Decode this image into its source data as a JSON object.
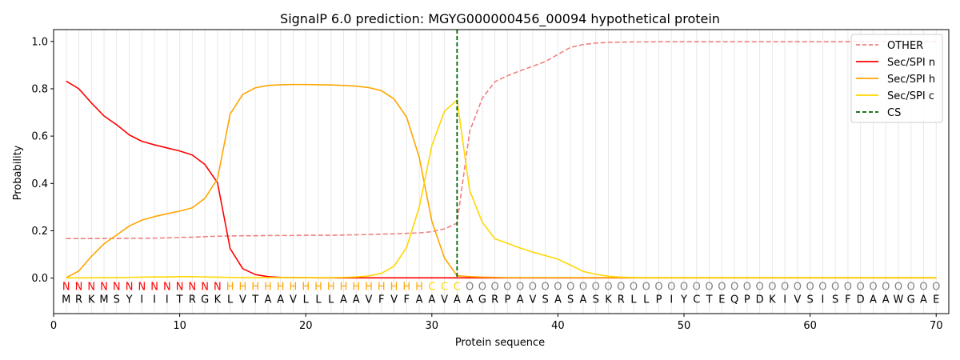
{
  "chart_data": {
    "type": "line",
    "title": "SignalP 6.0 prediction: MGYG000000456_00094 hypothetical protein",
    "xlabel": "Protein sequence",
    "ylabel": "Probability",
    "xlim": [
      0,
      71
    ],
    "ylim": [
      -0.15,
      1.05
    ],
    "xticks": [
      0,
      10,
      20,
      30,
      40,
      50,
      60,
      70
    ],
    "yticks": [
      0.0,
      0.2,
      0.4,
      0.6,
      0.8,
      1.0
    ],
    "grid": "vertical",
    "legend_position": "top-right",
    "x": [
      1,
      2,
      3,
      4,
      5,
      6,
      7,
      8,
      9,
      10,
      11,
      12,
      13,
      14,
      15,
      16,
      17,
      18,
      19,
      20,
      21,
      22,
      23,
      24,
      25,
      26,
      27,
      28,
      29,
      30,
      31,
      32,
      33,
      34,
      35,
      36,
      37,
      38,
      39,
      40,
      41,
      42,
      43,
      44,
      45,
      46,
      47,
      48,
      49,
      50,
      51,
      52,
      53,
      54,
      55,
      56,
      57,
      58,
      59,
      60,
      61,
      62,
      63,
      64,
      65,
      66,
      67,
      68,
      69,
      70
    ],
    "sequence": [
      "M",
      "R",
      "K",
      "M",
      "S",
      "Y",
      "I",
      "I",
      "I",
      "T",
      "R",
      "G",
      "K",
      "L",
      "V",
      "T",
      "A",
      "A",
      "V",
      "L",
      "L",
      "L",
      "A",
      "A",
      "V",
      "F",
      "V",
      "F",
      "A",
      "A",
      "V",
      "A",
      "A",
      "G",
      "R",
      "P",
      "A",
      "V",
      "S",
      "A",
      "S",
      "A",
      "S",
      "K",
      "R",
      "L",
      "L",
      "P",
      "I",
      "Y",
      "C",
      "T",
      "E",
      "Q",
      "P",
      "D",
      "K",
      "I",
      "V",
      "S",
      "I",
      "S",
      "F",
      "D",
      "A",
      "A",
      "W",
      "G",
      "A",
      "E"
    ],
    "labels": [
      "N",
      "N",
      "N",
      "N",
      "N",
      "N",
      "N",
      "N",
      "N",
      "N",
      "N",
      "N",
      "N",
      "H",
      "H",
      "H",
      "H",
      "H",
      "H",
      "H",
      "H",
      "H",
      "H",
      "H",
      "H",
      "H",
      "H",
      "H",
      "H",
      "C",
      "C",
      "C",
      "O",
      "O",
      "O",
      "O",
      "O",
      "O",
      "O",
      "O",
      "O",
      "O",
      "O",
      "O",
      "O",
      "O",
      "O",
      "O",
      "O",
      "O",
      "O",
      "O",
      "O",
      "O",
      "O",
      "O",
      "O",
      "O",
      "O",
      "O",
      "O",
      "O",
      "O",
      "O",
      "O",
      "O",
      "O",
      "O",
      "O",
      "O"
    ],
    "label_colors": {
      "N": "#ff0000",
      "H": "#ffa500",
      "C": "#ffd700",
      "O": "#808080"
    },
    "cs_position": 32,
    "series": [
      {
        "name": "OTHER",
        "color": "#f08080",
        "dash": "dashed",
        "values": [
          0.167,
          0.167,
          0.167,
          0.167,
          0.167,
          0.168,
          0.168,
          0.169,
          0.17,
          0.172,
          0.173,
          0.175,
          0.177,
          0.178,
          0.179,
          0.179,
          0.18,
          0.18,
          0.18,
          0.181,
          0.181,
          0.181,
          0.182,
          0.183,
          0.184,
          0.186,
          0.187,
          0.189,
          0.191,
          0.196,
          0.208,
          0.232,
          0.62,
          0.76,
          0.83,
          0.855,
          0.876,
          0.895,
          0.915,
          0.945,
          0.975,
          0.987,
          0.993,
          0.996,
          0.997,
          0.998,
          0.998,
          0.999,
          0.999,
          0.999,
          0.999,
          0.999,
          0.999,
          0.999,
          0.999,
          0.999,
          0.999,
          0.999,
          0.999,
          0.999,
          0.999,
          0.999,
          0.999,
          0.999,
          0.999,
          0.999,
          0.999,
          0.999,
          0.999,
          0.999
        ]
      },
      {
        "name": "Sec/SPI n",
        "color": "#ff0000",
        "dash": "solid",
        "values": [
          0.832,
          0.8,
          0.74,
          0.685,
          0.648,
          0.605,
          0.578,
          0.563,
          0.55,
          0.537,
          0.52,
          0.48,
          0.403,
          0.125,
          0.04,
          0.015,
          0.006,
          0.003,
          0.002,
          0.002,
          0.001,
          0.001,
          0.001,
          0.001,
          0.001,
          0.001,
          0.001,
          0.001,
          0.001,
          0.001,
          0.001,
          0.001,
          0.001,
          0.001,
          0.001,
          0.001,
          0.001,
          0.001,
          0.001,
          0.001,
          0.001,
          0.001,
          0.001,
          0.001,
          0.001,
          0.001,
          0.001,
          0.001,
          0.001,
          0.001,
          0.001,
          0.001,
          0.001,
          0.001,
          0.001,
          0.001,
          0.001,
          0.001,
          0.001,
          0.001,
          0.001,
          0.001,
          0.001,
          0.001,
          0.001,
          0.001,
          0.001,
          0.001,
          0.001,
          0.001
        ]
      },
      {
        "name": "Sec/SPI h",
        "color": "#ffa500",
        "dash": "solid",
        "values": [
          0.002,
          0.03,
          0.092,
          0.145,
          0.182,
          0.22,
          0.245,
          0.26,
          0.272,
          0.283,
          0.297,
          0.337,
          0.42,
          0.693,
          0.776,
          0.804,
          0.814,
          0.817,
          0.818,
          0.818,
          0.817,
          0.816,
          0.814,
          0.811,
          0.805,
          0.792,
          0.757,
          0.68,
          0.51,
          0.24,
          0.085,
          0.01,
          0.006,
          0.004,
          0.003,
          0.002,
          0.002,
          0.002,
          0.002,
          0.002,
          0.002,
          0.002,
          0.002,
          0.002,
          0.002,
          0.002,
          0.002,
          0.002,
          0.002,
          0.002,
          0.002,
          0.002,
          0.002,
          0.002,
          0.002,
          0.002,
          0.002,
          0.002,
          0.002,
          0.002,
          0.002,
          0.002,
          0.002,
          0.002,
          0.002,
          0.002,
          0.002,
          0.002,
          0.002,
          0.002
        ]
      },
      {
        "name": "Sec/SPI c",
        "color": "#ffd700",
        "dash": "solid",
        "values": [
          0.001,
          0.001,
          0.001,
          0.002,
          0.002,
          0.003,
          0.004,
          0.005,
          0.005,
          0.006,
          0.006,
          0.005,
          0.004,
          0.003,
          0.002,
          0.002,
          0.002,
          0.002,
          0.002,
          0.002,
          0.002,
          0.002,
          0.003,
          0.005,
          0.009,
          0.02,
          0.05,
          0.13,
          0.3,
          0.56,
          0.705,
          0.752,
          0.37,
          0.236,
          0.166,
          0.147,
          0.127,
          0.11,
          0.095,
          0.08,
          0.055,
          0.028,
          0.016,
          0.008,
          0.004,
          0.002,
          0.001,
          0.001,
          0.001,
          0.001,
          0.001,
          0.001,
          0.001,
          0.001,
          0.001,
          0.001,
          0.001,
          0.001,
          0.001,
          0.001,
          0.001,
          0.001,
          0.001,
          0.001,
          0.001,
          0.001,
          0.001,
          0.001,
          0.001,
          0.001
        ]
      }
    ],
    "cs_series": {
      "name": "CS",
      "color": "#006400",
      "dash": "dashed"
    }
  }
}
